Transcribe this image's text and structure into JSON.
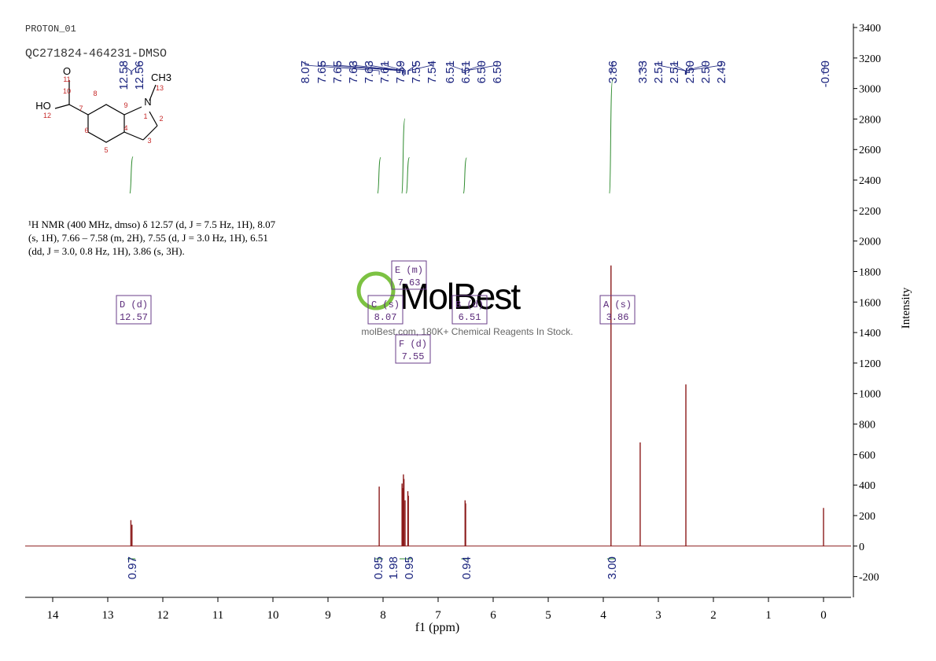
{
  "chart_data": {
    "type": "spectrum",
    "header": [
      "PROTON_01",
      "QC271824-464231-DMSO"
    ],
    "description": [
      "¹H NMR (400 MHz, dmso) δ 12.57 (d, J = 7.5 Hz, 1H), 8.07",
      "(s, 1H), 7.66 – 7.58 (m, 2H), 7.55 (d, J = 3.0 Hz, 1H), 6.51",
      "(dd, J = 3.0, 0.8 Hz, 1H), 3.86 (s, 3H)."
    ],
    "structure_labels": [
      "O",
      "HO",
      "N",
      "CH3",
      "11",
      "10",
      "12",
      "7",
      "8",
      "9",
      "1",
      "13",
      "2",
      "3",
      "4",
      "5",
      "6"
    ],
    "peak_labels": [
      "12.58",
      "12.56",
      "8.07",
      "7.65",
      "7.65",
      "7.63",
      "7.63",
      "7.61",
      "7.59",
      "7.55",
      "7.54",
      "6.51",
      "6.51",
      "6.50",
      "6.50",
      "3.86",
      "3.33",
      "2.51",
      "2.51",
      "2.50",
      "2.50",
      "2.49",
      "-0.00"
    ],
    "peaks": {
      "ppm": [
        12.58,
        12.56,
        8.07,
        7.655,
        7.645,
        7.63,
        7.62,
        7.6,
        7.55,
        7.54,
        6.51,
        6.5,
        3.86,
        3.33,
        2.5,
        0
      ],
      "intensity": [
        170,
        140,
        390,
        410,
        380,
        470,
        440,
        300,
        360,
        330,
        300,
        280,
        1840,
        680,
        1060,
        250
      ],
      "color": "#8b1a1a"
    },
    "multiplets": [
      [
        "D (d)",
        "12.57"
      ],
      [
        "C (s)",
        "8.07"
      ],
      [
        "E (m)",
        "7.63"
      ],
      [
        "B (d)",
        "6.51"
      ],
      [
        "F (d)",
        "7.55"
      ],
      [
        "A (s)",
        "3.86"
      ]
    ],
    "integrals": {
      "ppm": [
        12.57,
        8.07,
        7.63,
        7.55,
        6.51,
        3.86
      ],
      "values": [
        0.97,
        0.95,
        1.98,
        0.95,
        0.94,
        3.0
      ],
      "color": "#2e8b2e"
    },
    "watermark": [
      "MolBest",
      "molBest.com, 180K+ Chemical Reagents In Stock."
    ],
    "x_label": "f1 (ppm)",
    "y_label": "Intensity",
    "xlim": [
      14.5,
      -0.5
    ],
    "xticks": [
      14,
      13,
      12,
      11,
      10,
      9,
      8,
      7,
      6,
      5,
      4,
      3,
      2,
      1,
      0
    ],
    "ylim": [
      -300,
      3400
    ],
    "yticks": [
      -200,
      0,
      200,
      400,
      600,
      800,
      1000,
      1200,
      1400,
      1600,
      1800,
      2000,
      2200,
      2400,
      2600,
      2800,
      3000,
      3200,
      3400
    ]
  }
}
